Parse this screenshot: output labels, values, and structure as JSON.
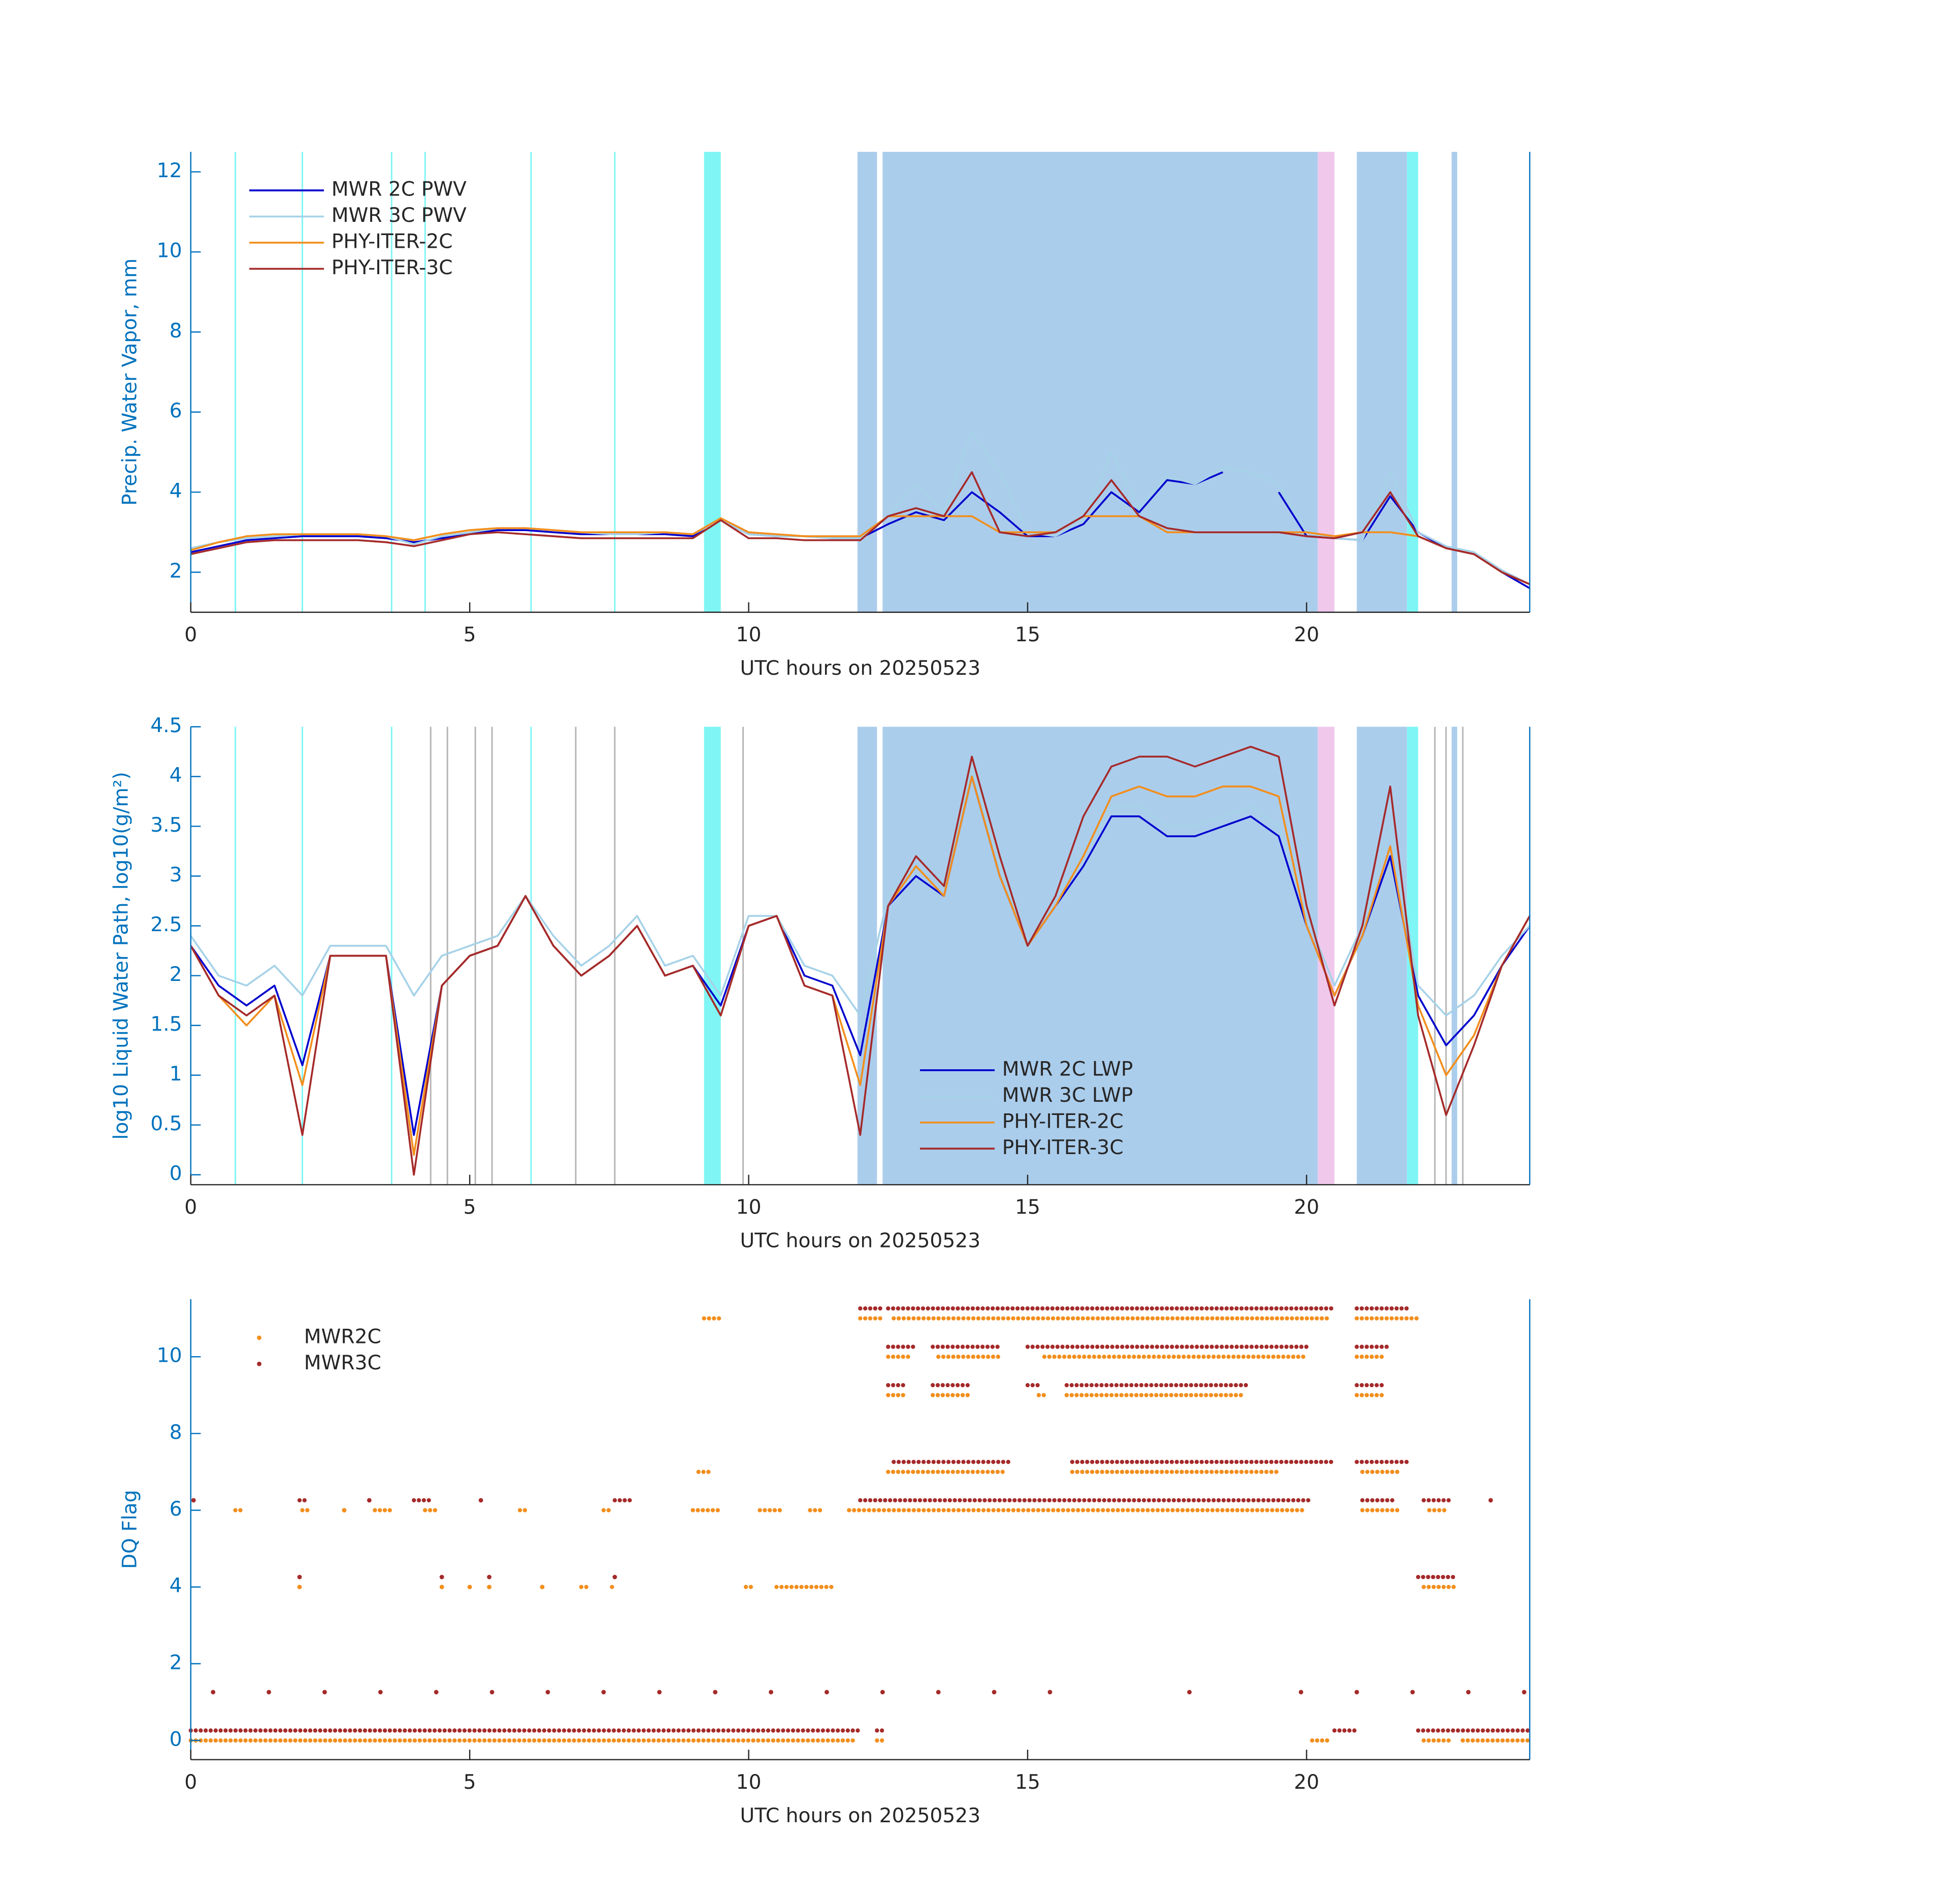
{
  "chart_data": [
    {
      "type": "line",
      "xlabel": "UTC hours on 20250523",
      "ylabel": "Precip. Water Vapor, mm",
      "legend": "upper left",
      "xlim": [
        0,
        24
      ],
      "xticks": [
        0,
        5,
        10,
        15,
        20
      ],
      "ylim": [
        1,
        12.5
      ],
      "yticks": [
        2,
        4,
        6,
        8,
        10,
        12
      ],
      "regions": [
        {
          "start": 0.8,
          "end": 0.8,
          "color": "#7ff5f5"
        },
        {
          "start": 2.0,
          "end": 2.0,
          "color": "#7ff5f5"
        },
        {
          "start": 3.6,
          "end": 3.6,
          "color": "#7ff5f5"
        },
        {
          "start": 4.2,
          "end": 4.2,
          "color": "#7ff5f5"
        },
        {
          "start": 6.1,
          "end": 6.1,
          "color": "#7ff5f5"
        },
        {
          "start": 7.6,
          "end": 7.6,
          "color": "#7ff5f5"
        },
        {
          "start": 9.2,
          "end": 9.5,
          "color": "#7ff5f5"
        },
        {
          "start": 11.95,
          "end": 12.3,
          "color": "#abcdec"
        },
        {
          "start": 12.4,
          "end": 20.2,
          "color": "#abcdec"
        },
        {
          "start": 20.2,
          "end": 20.5,
          "color": "#f0c8ec"
        },
        {
          "start": 20.9,
          "end": 21.8,
          "color": "#abcdec"
        },
        {
          "start": 21.8,
          "end": 22.0,
          "color": "#7ff5f5"
        },
        {
          "start": 22.6,
          "end": 22.7,
          "color": "#abcdec"
        }
      ],
      "x": [
        0,
        0.5,
        1,
        1.5,
        2,
        2.5,
        3,
        3.5,
        4,
        4.5,
        5,
        5.5,
        6,
        6.5,
        7,
        7.5,
        8,
        8.5,
        9,
        9.5,
        10,
        10.5,
        11,
        11.5,
        12,
        12.5,
        13,
        13.5,
        14,
        14.5,
        15,
        15.5,
        16,
        16.5,
        17,
        17.5,
        18,
        18.5,
        19,
        19.5,
        20,
        20.5,
        21,
        21.5,
        22,
        22.5,
        23,
        23.5,
        24
      ],
      "series": [
        {
          "name": "MWR 2C PWV",
          "color": "#0000cd",
          "values": [
            2.5,
            2.65,
            2.8,
            2.85,
            2.9,
            2.9,
            2.9,
            2.85,
            2.75,
            2.85,
            2.95,
            3.05,
            3.05,
            3.0,
            2.95,
            2.95,
            2.95,
            2.95,
            2.9,
            3.3,
            2.95,
            2.9,
            2.9,
            2.85,
            2.85,
            3.2,
            3.5,
            3.3,
            4.0,
            3.5,
            2.9,
            2.9,
            3.2,
            4.0,
            3.5,
            4.3,
            4.2,
            4.5,
            null,
            4.0,
            2.9,
            2.85,
            2.8,
            3.9,
            3.0,
            2.6,
            2.45,
            2.0,
            1.6
          ]
        },
        {
          "name": "MWR 3C PWV",
          "color": "#a6d2e8",
          "values": [
            2.6,
            2.75,
            2.85,
            2.9,
            2.95,
            2.95,
            2.95,
            2.9,
            2.7,
            2.9,
            3.0,
            3.1,
            3.1,
            3.05,
            3.0,
            2.95,
            2.95,
            3.0,
            2.95,
            3.3,
            2.95,
            2.9,
            2.9,
            2.85,
            2.85,
            3.4,
            4.2,
            3.5,
            5.5,
            4.5,
            3.0,
            2.9,
            3.3,
            5.0,
            3.6,
            4.4,
            4.2,
            4.6,
            4.5,
            4.2,
            3.0,
            2.85,
            2.8,
            4.5,
            3.0,
            2.65,
            2.5,
            2.05,
            1.7
          ]
        },
        {
          "name": "PHY-ITER-2C",
          "color": "#f28e1c",
          "values": [
            2.55,
            2.75,
            2.9,
            2.95,
            2.95,
            2.95,
            2.95,
            2.9,
            2.8,
            2.95,
            3.05,
            3.1,
            3.1,
            3.05,
            3.0,
            3.0,
            3.0,
            3.0,
            2.95,
            3.35,
            3.0,
            2.95,
            2.9,
            2.9,
            2.9,
            3.4,
            3.4,
            3.4,
            3.4,
            3.0,
            3.0,
            3.0,
            3.4,
            3.4,
            3.4,
            3.0,
            3.0,
            3.0,
            3.0,
            3.0,
            3.0,
            2.9,
            3.0,
            3.0,
            2.9,
            2.6,
            2.45,
            2.0,
            1.7
          ]
        },
        {
          "name": "PHY-ITER-3C",
          "color": "#a52a2a",
          "values": [
            2.45,
            2.6,
            2.75,
            2.8,
            2.8,
            2.8,
            2.8,
            2.75,
            2.65,
            2.8,
            2.95,
            3.0,
            2.95,
            2.9,
            2.85,
            2.85,
            2.85,
            2.85,
            2.85,
            3.3,
            2.85,
            2.85,
            2.8,
            2.8,
            2.8,
            3.4,
            3.6,
            3.4,
            4.5,
            3.0,
            2.9,
            3.0,
            3.4,
            4.3,
            3.4,
            3.1,
            3.0,
            3.0,
            3.0,
            3.0,
            2.9,
            2.85,
            3.0,
            4.0,
            2.9,
            2.6,
            2.45,
            2.0,
            1.7
          ]
        }
      ]
    },
    {
      "type": "line",
      "xlabel": "UTC hours on 20250523",
      "ylabel": "log10 Liquid Water Path, log10(g/m²)",
      "legend": "lower center",
      "xlim": [
        0,
        24
      ],
      "xticks": [
        0,
        5,
        10,
        15,
        20
      ],
      "ylim": [
        -0.1,
        4.5
      ],
      "yticks": [
        0,
        0.5,
        1,
        1.5,
        2,
        2.5,
        3,
        3.5,
        4,
        4.5
      ],
      "regions": [
        {
          "start": 0.8,
          "end": 0.8,
          "color": "#7ff5f5"
        },
        {
          "start": 2.0,
          "end": 2.0,
          "color": "#7ff5f5"
        },
        {
          "start": 3.6,
          "end": 3.6,
          "color": "#7ff5f5"
        },
        {
          "start": 4.3,
          "end": 4.3,
          "color": "#b4b4b4"
        },
        {
          "start": 4.6,
          "end": 4.6,
          "color": "#b4b4b4"
        },
        {
          "start": 5.1,
          "end": 5.1,
          "color": "#b4b4b4"
        },
        {
          "start": 5.4,
          "end": 5.4,
          "color": "#b4b4b4"
        },
        {
          "start": 6.1,
          "end": 6.1,
          "color": "#7ff5f5"
        },
        {
          "start": 6.9,
          "end": 6.9,
          "color": "#b4b4b4"
        },
        {
          "start": 7.6,
          "end": 7.6,
          "color": "#b4b4b4"
        },
        {
          "start": 9.2,
          "end": 9.5,
          "color": "#7ff5f5"
        },
        {
          "start": 9.9,
          "end": 9.9,
          "color": "#b4b4b4"
        },
        {
          "start": 11.95,
          "end": 12.3,
          "color": "#abcdec"
        },
        {
          "start": 12.4,
          "end": 20.2,
          "color": "#abcdec"
        },
        {
          "start": 20.2,
          "end": 20.5,
          "color": "#f0c8ec"
        },
        {
          "start": 20.9,
          "end": 21.8,
          "color": "#abcdec"
        },
        {
          "start": 21.8,
          "end": 22.0,
          "color": "#7ff5f5"
        },
        {
          "start": 22.3,
          "end": 22.3,
          "color": "#b4b4b4"
        },
        {
          "start": 22.5,
          "end": 22.5,
          "color": "#b4b4b4"
        },
        {
          "start": 22.6,
          "end": 22.7,
          "color": "#abcdec"
        },
        {
          "start": 22.8,
          "end": 22.8,
          "color": "#b4b4b4"
        }
      ],
      "x": [
        0,
        0.5,
        1,
        1.5,
        2,
        2.5,
        3,
        3.5,
        4,
        4.5,
        5,
        5.5,
        6,
        6.5,
        7,
        7.5,
        8,
        8.5,
        9,
        9.5,
        10,
        10.5,
        11,
        11.5,
        12,
        12.5,
        13,
        13.5,
        14,
        14.5,
        15,
        15.5,
        16,
        16.5,
        17,
        17.5,
        18,
        18.5,
        19,
        19.5,
        20,
        20.5,
        21,
        21.5,
        22,
        22.5,
        23,
        23.5,
        24
      ],
      "series": [
        {
          "name": "MWR 2C LWP",
          "color": "#0000cd",
          "values": [
            2.3,
            1.9,
            1.7,
            1.9,
            1.1,
            2.2,
            2.2,
            2.2,
            0.4,
            1.9,
            2.2,
            2.3,
            2.8,
            2.3,
            2.0,
            2.2,
            2.5,
            2.0,
            2.1,
            1.7,
            2.5,
            2.6,
            2.0,
            1.9,
            1.2,
            2.7,
            3.0,
            2.8,
            4.0,
            3.0,
            2.3,
            2.7,
            3.1,
            3.6,
            3.6,
            3.4,
            3.4,
            3.5,
            3.6,
            3.4,
            2.5,
            1.8,
            2.4,
            3.2,
            1.8,
            1.3,
            1.6,
            2.1,
            2.5
          ]
        },
        {
          "name": "MWR 3C LWP",
          "color": "#a6d2e8",
          "values": [
            2.4,
            2.0,
            1.9,
            2.1,
            1.8,
            2.3,
            2.3,
            2.3,
            1.8,
            2.2,
            2.3,
            2.4,
            2.8,
            2.4,
            2.1,
            2.3,
            2.6,
            2.1,
            2.2,
            1.8,
            2.6,
            2.6,
            2.1,
            2.0,
            1.6,
            2.8,
            3.2,
            2.9,
            4.1,
            3.1,
            2.3,
            2.8,
            3.2,
            3.7,
            3.7,
            3.5,
            3.5,
            3.6,
            3.7,
            3.5,
            2.6,
            1.9,
            2.5,
            3.5,
            1.9,
            1.6,
            1.8,
            2.2,
            2.5
          ]
        },
        {
          "name": "PHY-ITER-2C",
          "color": "#f28e1c",
          "values": [
            2.3,
            1.8,
            1.5,
            1.8,
            0.9,
            2.2,
            2.2,
            2.2,
            0.2,
            1.9,
            2.2,
            2.3,
            2.8,
            2.3,
            2.0,
            2.2,
            2.5,
            2.0,
            2.1,
            1.6,
            2.5,
            2.6,
            1.9,
            1.8,
            0.9,
            2.7,
            3.1,
            2.8,
            4.0,
            3.0,
            2.3,
            2.7,
            3.2,
            3.8,
            3.9,
            3.8,
            3.8,
            3.9,
            3.9,
            3.8,
            2.5,
            1.8,
            2.4,
            3.3,
            1.7,
            1.0,
            1.4,
            2.1,
            2.6
          ]
        },
        {
          "name": "PHY-ITER-3C",
          "color": "#a52a2a",
          "values": [
            2.3,
            1.8,
            1.6,
            1.8,
            0.4,
            2.2,
            2.2,
            2.2,
            0.0,
            1.9,
            2.2,
            2.3,
            2.8,
            2.3,
            2.0,
            2.2,
            2.5,
            2.0,
            2.1,
            1.6,
            2.5,
            2.6,
            1.9,
            1.8,
            0.4,
            2.7,
            3.2,
            2.9,
            4.2,
            3.2,
            2.3,
            2.8,
            3.6,
            4.1,
            4.2,
            4.2,
            4.1,
            4.2,
            4.3,
            4.2,
            2.7,
            1.7,
            2.5,
            3.9,
            1.6,
            0.6,
            1.3,
            2.1,
            2.6
          ]
        }
      ]
    },
    {
      "type": "scatter",
      "xlabel": "UTC hours on 20250523",
      "ylabel": "DQ Flag",
      "legend": "upper left",
      "xlim": [
        0,
        24
      ],
      "xticks": [
        0,
        5,
        10,
        15,
        20
      ],
      "ylim": [
        -0.5,
        11.5
      ],
      "yticks": [
        0,
        2,
        4,
        6,
        8,
        10
      ],
      "series": [
        {
          "name": "MWR2C",
          "color": "#f28e1c",
          "starts": [
            0,
            12.3,
            20.1,
            22.1,
            22.8,
            1.95,
            4.5,
            5.0,
            5.35,
            6.3,
            7.0,
            7.55,
            9.95,
            10.5,
            22.1,
            0.8,
            2.0,
            2.75,
            3.3,
            4.2,
            5.9,
            7.4,
            9.0,
            10.2,
            11.1,
            11.8,
            21.0,
            22.2,
            9.1,
            12.5,
            15.8,
            21.0,
            12.5,
            13.3,
            15.2,
            15.7,
            20.9,
            12.5,
            13.4,
            15.3,
            20.9,
            9.2,
            12.0,
            12.6,
            20.9
          ],
          "ends": [
            11.9,
            12.4,
            20.4,
            22.6,
            24,
            1.95,
            4.5,
            5.0,
            5.35,
            6.3,
            7.1,
            7.6,
            10.05,
            11.5,
            22.7,
            0.9,
            2.1,
            2.75,
            3.6,
            4.4,
            6.0,
            7.5,
            9.5,
            10.6,
            11.3,
            20.0,
            21.7,
            22.5,
            9.3,
            14.6,
            19.5,
            21.7,
            12.8,
            14.0,
            15.3,
            18.9,
            21.4,
            12.9,
            14.5,
            20.0,
            21.4,
            9.5,
            12.4,
            20.4,
            22.0
          ],
          "values": [
            0,
            0,
            0,
            0,
            0,
            4,
            4,
            4,
            4,
            4,
            4,
            4,
            4,
            4,
            4,
            6,
            6,
            6,
            6,
            6,
            6,
            6,
            6,
            6,
            6,
            6,
            6,
            6,
            7,
            7,
            7,
            7,
            9,
            9,
            9,
            9,
            9,
            10,
            10,
            10,
            10,
            11,
            11,
            11,
            11
          ]
        },
        {
          "name": "MWR3C",
          "color": "#a52a2a",
          "starts": [
            0,
            12.3,
            20.5,
            22.0,
            0.4,
            1.4,
            2.4,
            3.4,
            4.4,
            5.4,
            6.4,
            7.4,
            8.4,
            9.4,
            10.4,
            11.4,
            12.4,
            13.4,
            14.4,
            15.4,
            17.9,
            19.9,
            20.9,
            21.9,
            22.9,
            23.9,
            1.95,
            4.5,
            5.35,
            7.6,
            22.0,
            0.05,
            1.95,
            3.2,
            4.0,
            5.2,
            7.6,
            12.0,
            21.0,
            22.1,
            23.3,
            12.6,
            15.8,
            20.9,
            12.5,
            13.3,
            15.0,
            15.7,
            20.9,
            12.5,
            13.3,
            15.0,
            20.9,
            12.0,
            12.5,
            20.9
          ],
          "ends": [
            12.0,
            12.4,
            20.9,
            24,
            0.4,
            1.4,
            2.4,
            3.4,
            4.4,
            5.4,
            6.4,
            7.4,
            8.4,
            9.4,
            10.4,
            11.4,
            12.4,
            13.4,
            14.4,
            15.4,
            17.9,
            19.9,
            20.9,
            21.9,
            22.9,
            23.9,
            1.95,
            4.5,
            5.35,
            7.6,
            22.7,
            0.05,
            2.05,
            3.2,
            4.3,
            5.2,
            7.9,
            20.1,
            21.6,
            22.6,
            23.3,
            14.7,
            20.5,
            21.8,
            12.8,
            14.0,
            15.2,
            19.0,
            21.4,
            13.0,
            14.5,
            20.0,
            21.5,
            12.4,
            20.5,
            21.8
          ],
          "values": [
            0,
            0,
            0,
            0,
            1,
            1,
            1,
            1,
            1,
            1,
            1,
            1,
            1,
            1,
            1,
            1,
            1,
            1,
            1,
            1,
            1,
            1,
            1,
            1,
            1,
            1,
            4,
            4,
            4,
            4,
            4,
            6,
            6,
            6,
            6,
            6,
            6,
            6,
            6,
            6,
            6,
            7,
            7,
            7,
            9,
            9,
            9,
            9,
            9,
            10,
            10,
            10,
            10,
            11,
            11,
            11
          ]
        }
      ]
    }
  ]
}
